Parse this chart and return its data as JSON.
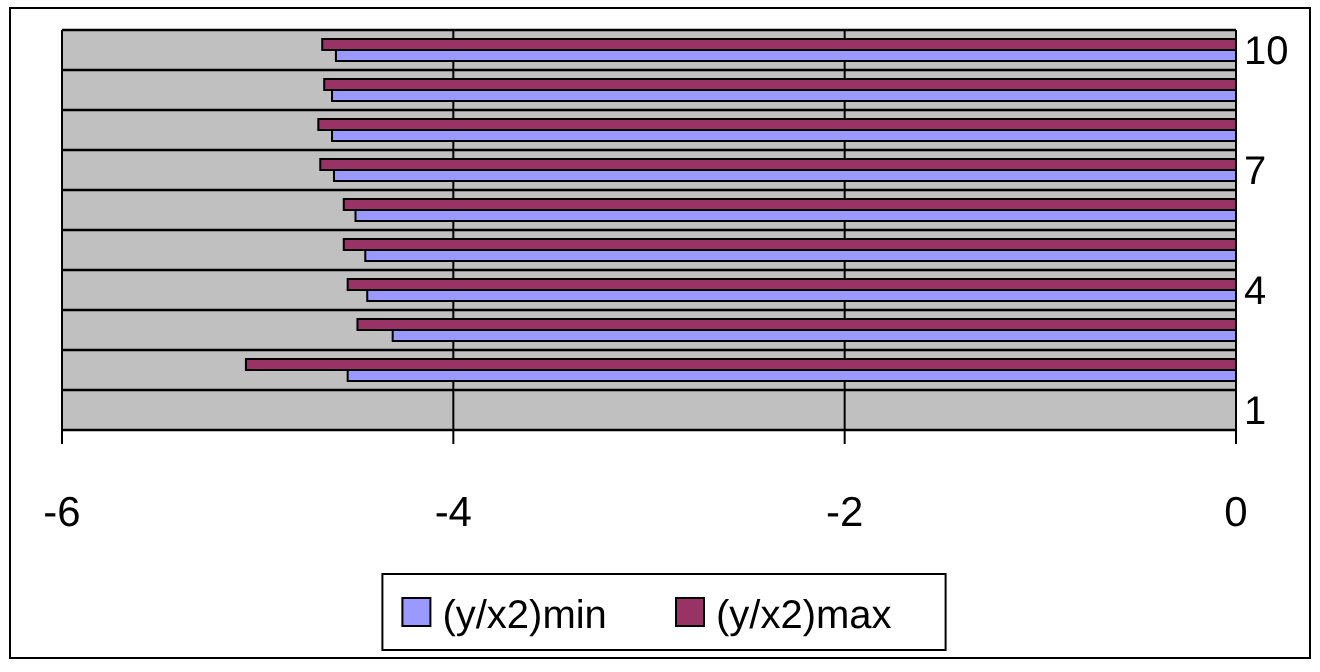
{
  "chart_data": {
    "type": "bar",
    "orientation": "horizontal",
    "categories": [
      "10",
      null,
      null,
      "7",
      null,
      null,
      "4",
      null,
      null,
      "1"
    ],
    "series": [
      {
        "name": "(y/x2)min",
        "color": "#9999ff",
        "values": [
          -4.6,
          -4.62,
          -4.62,
          -4.61,
          -4.5,
          -4.45,
          -4.44,
          -4.31,
          -4.54,
          null
        ]
      },
      {
        "name": "(y/x2)max",
        "color": "#993366",
        "values": [
          -4.67,
          -4.66,
          -4.69,
          -4.68,
          -4.56,
          -4.56,
          -4.54,
          -4.49,
          -5.06,
          null
        ]
      }
    ],
    "xlim": [
      -6,
      0
    ],
    "xticks": [
      -6,
      -4,
      -2,
      0
    ],
    "grid": true,
    "legend": "bottom"
  }
}
